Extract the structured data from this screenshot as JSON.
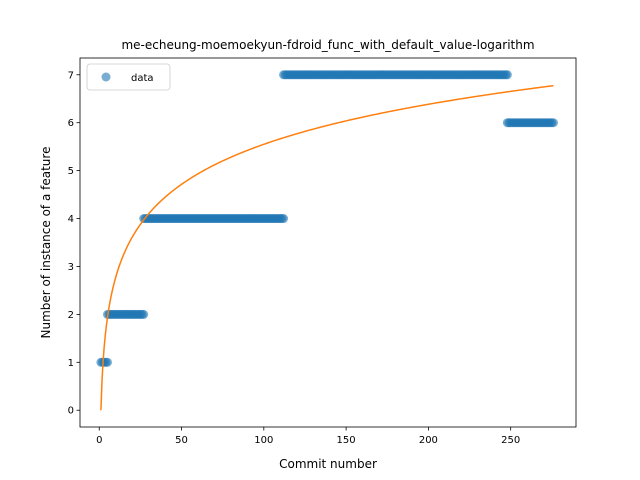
{
  "chart_data": {
    "type": "scatter",
    "title": "me-echeung-moemoekyun-fdroid_func_with_default_value-logarithm",
    "xlabel": "Commit number",
    "ylabel": "Number of instance of a feature",
    "xlim": [
      -11.7,
      289.7
    ],
    "ylim": [
      -0.35,
      7.35
    ],
    "xticks": [
      0,
      50,
      100,
      150,
      200,
      250
    ],
    "yticks": [
      0,
      1,
      2,
      3,
      4,
      5,
      6,
      7
    ],
    "grid": false,
    "legend": {
      "position": "top-left",
      "entries": [
        "data"
      ]
    },
    "colors": {
      "data": "#1f77b4",
      "fit": "#ff7f0e"
    },
    "series": [
      {
        "name": "data",
        "kind": "scatter",
        "segments": [
          {
            "x_start": 1,
            "x_end": 5,
            "y": 1
          },
          {
            "x_start": 5,
            "x_end": 27,
            "y": 2
          },
          {
            "x_start": 27,
            "x_end": 112,
            "y": 4
          },
          {
            "x_start": 112,
            "x_end": 248,
            "y": 7
          },
          {
            "x_start": 248,
            "x_end": 276,
            "y": 6
          }
        ]
      },
      {
        "kind": "line",
        "model": "a*ln(x)+b",
        "a": 1.205,
        "b": 0,
        "x_start": 1,
        "x_end": 276
      }
    ]
  }
}
